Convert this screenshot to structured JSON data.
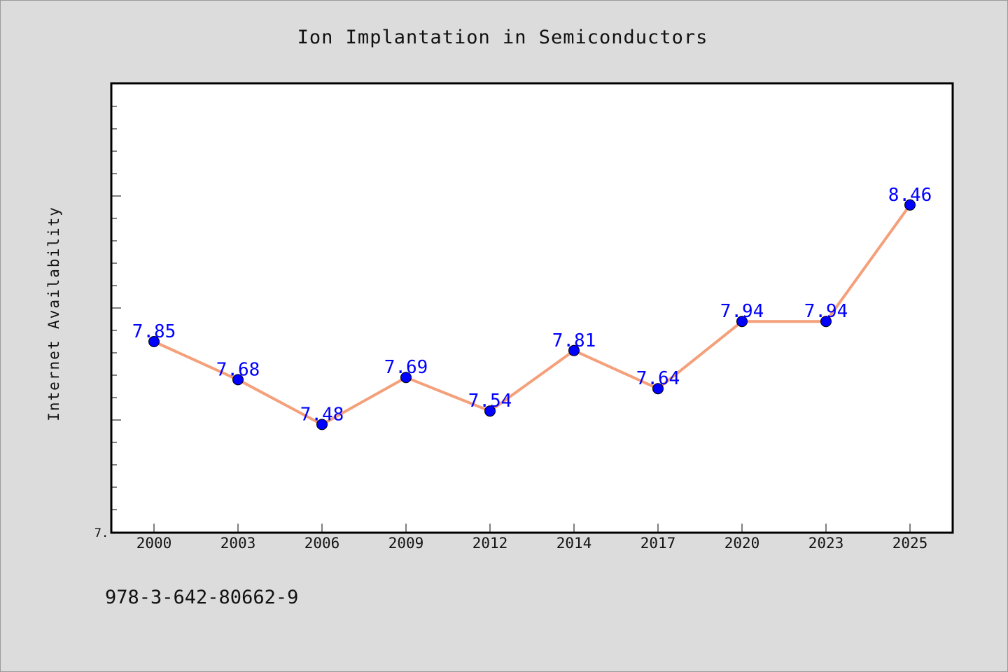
{
  "chart_data": {
    "type": "line",
    "title": "Ion Implantation in Semiconductors",
    "xlabel": "",
    "ylabel": "Internet Availability",
    "categories": [
      "2000",
      "2003",
      "2006",
      "2009",
      "2012",
      "2014",
      "2017",
      "2020",
      "2023",
      "2025"
    ],
    "values": [
      7.85,
      7.68,
      7.48,
      7.69,
      7.54,
      7.81,
      7.64,
      7.94,
      7.94,
      8.46
    ],
    "ylim": [
      7.0,
      9.0
    ],
    "y_tick_label": "7.",
    "data_labels": [
      "7.85",
      "7.68",
      "7.48",
      "7.69",
      "7.54",
      "7.81",
      "7.64",
      "7.94",
      "7.94",
      "8.46"
    ],
    "line_color": "#f4a07a",
    "marker_color": "#0000ff",
    "label_color": "#0000ff",
    "background": "#dcdcdc",
    "plot_background": "#ffffff",
    "grid": false,
    "legend": "none"
  },
  "footer": {
    "isbn": "978-3-642-80662-9"
  }
}
